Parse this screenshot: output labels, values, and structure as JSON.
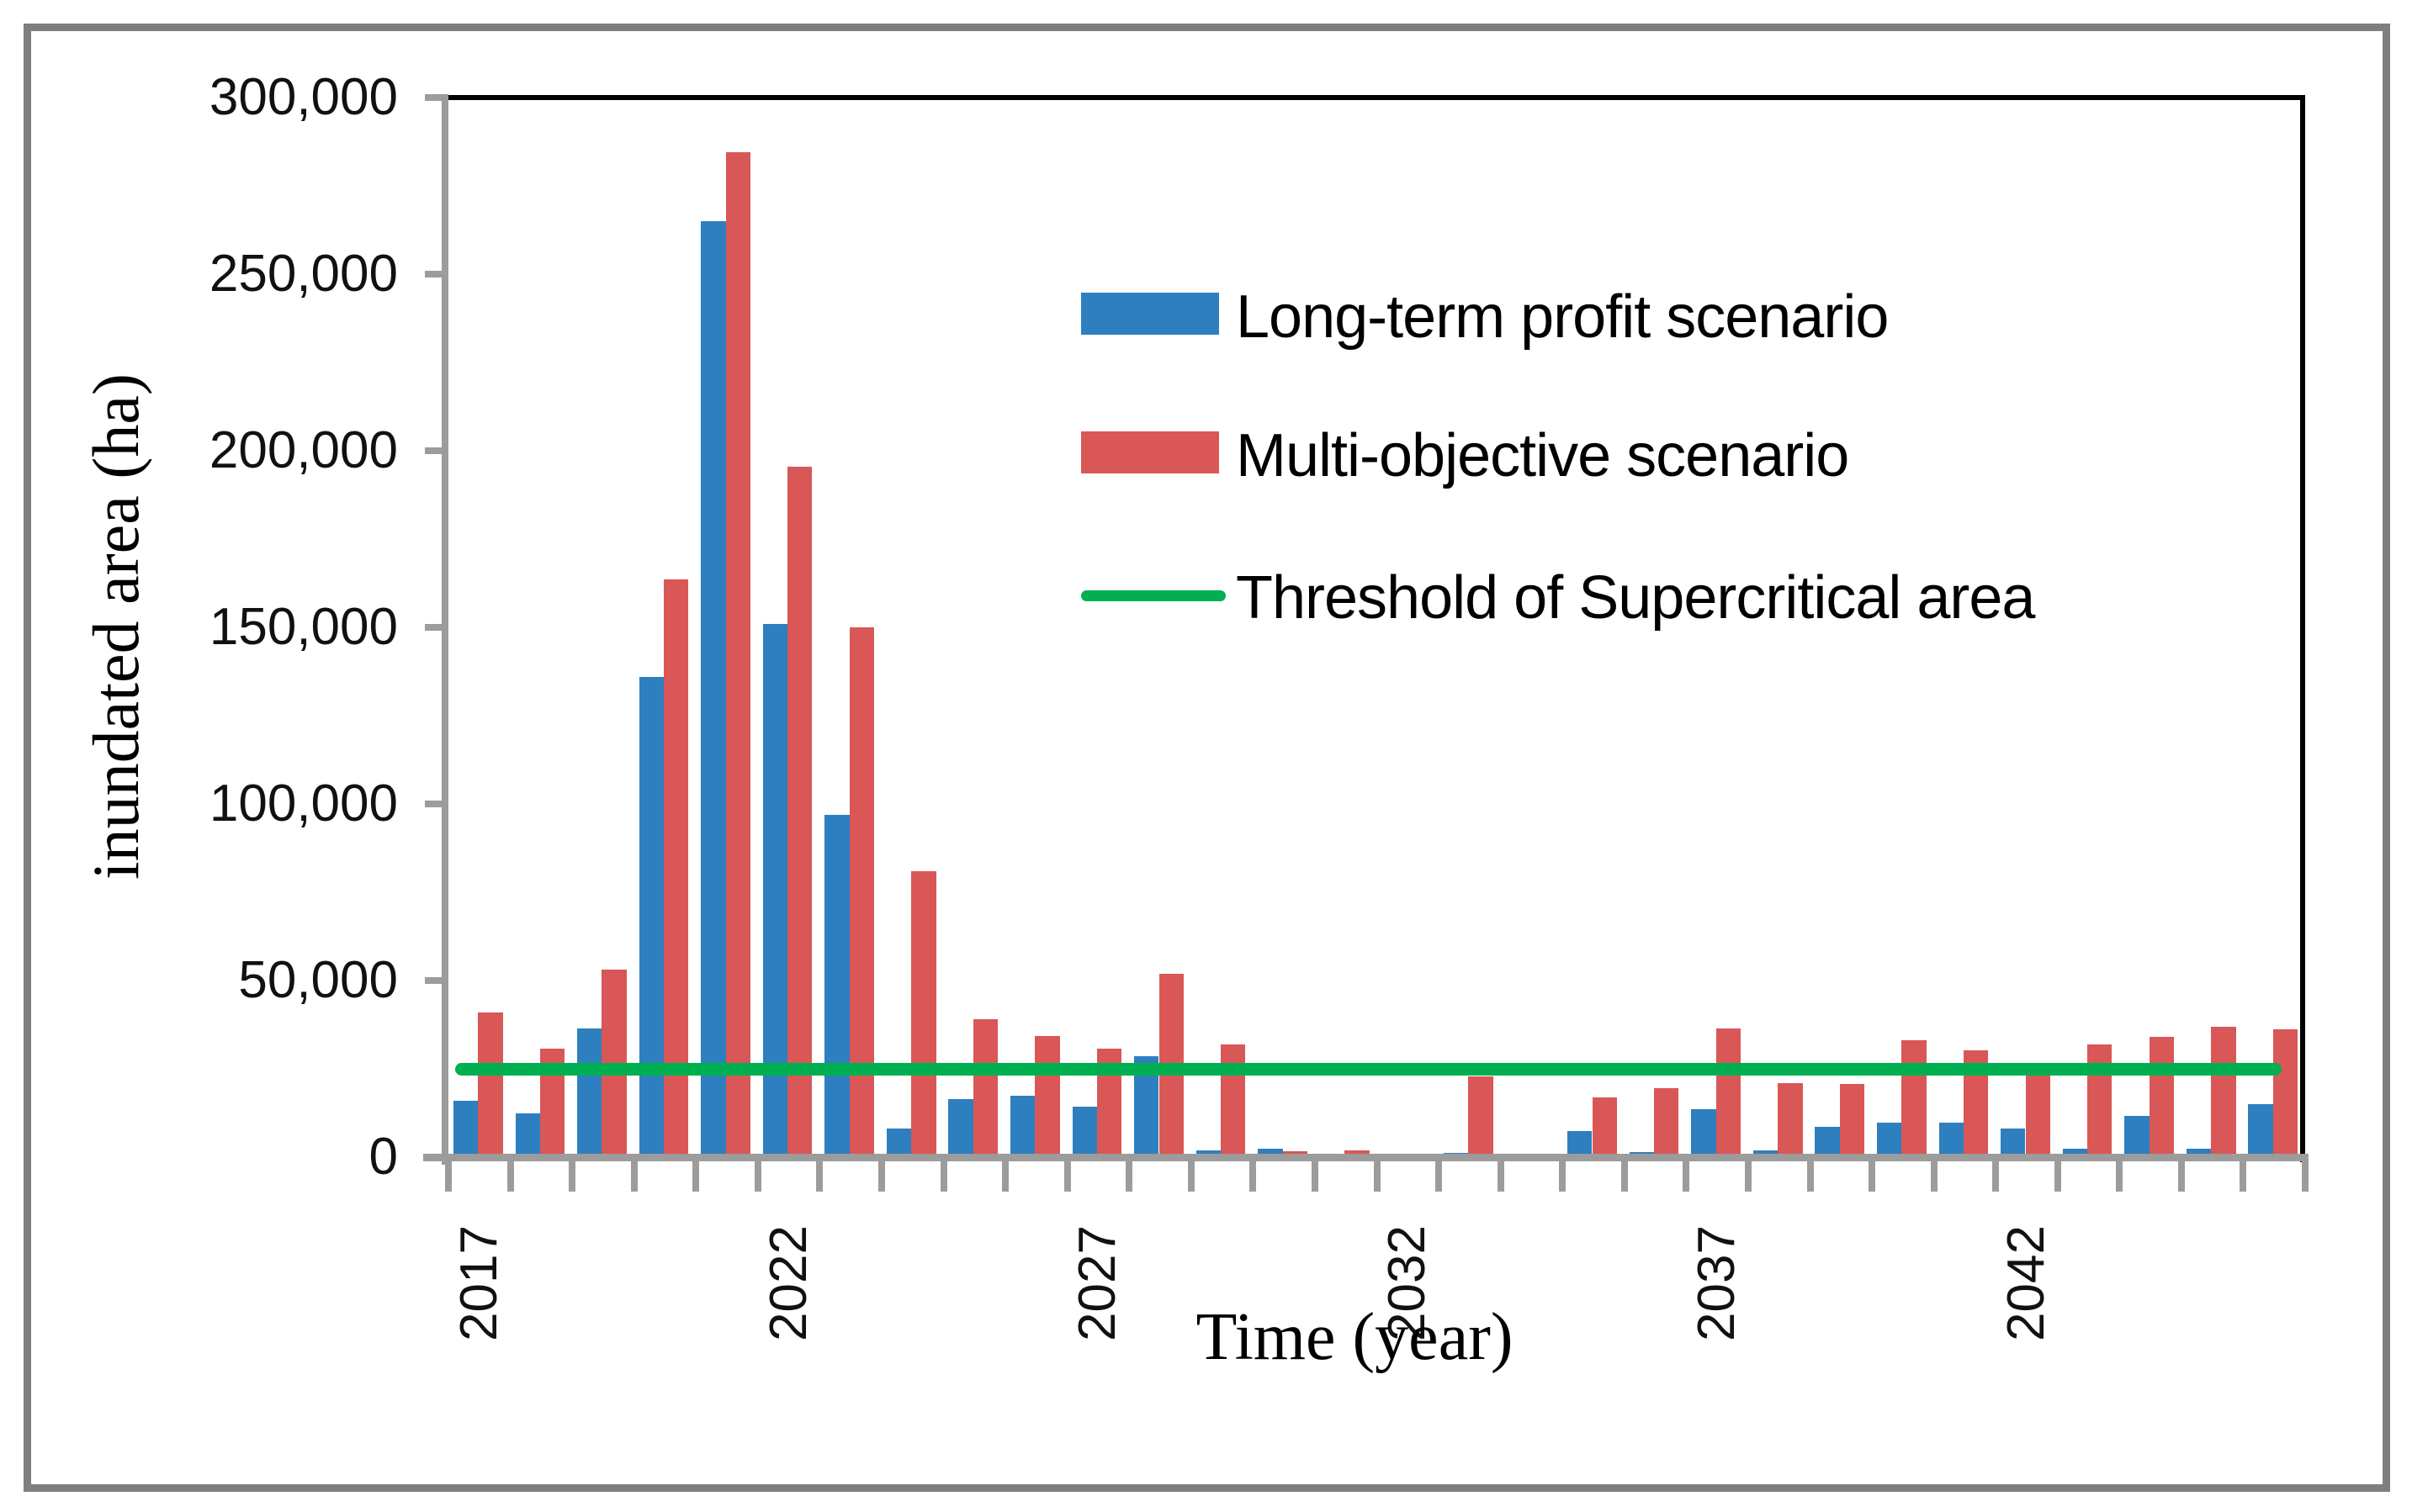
{
  "figure": {
    "border_color": "#7f7f7f",
    "background": "#ffffff"
  },
  "chart_data": {
    "type": "bar",
    "title": "",
    "xlabel": "Time (year)",
    "ylabel": "inundated area (ha)",
    "ylim": [
      0,
      300000
    ],
    "ytick_step": 50000,
    "ytick_labels": [
      "0",
      "50,000",
      "100,000",
      "150,000",
      "200,000",
      "250,000",
      "300,000"
    ],
    "grid": false,
    "legend_position": "upper-right-inside",
    "x_years": [
      2017,
      2018,
      2019,
      2020,
      2021,
      2022,
      2023,
      2024,
      2025,
      2026,
      2027,
      2028,
      2029,
      2030,
      2031,
      2032,
      2033,
      2034,
      2035,
      2036,
      2037,
      2038,
      2039,
      2040,
      2041,
      2042,
      2043,
      2044,
      2045,
      2046
    ],
    "x_tick_labels": [
      "2017",
      "2022",
      "2027",
      "2032",
      "2037",
      "2042"
    ],
    "x_label_interval": 5,
    "series": [
      {
        "name": "Long-term profit scenario",
        "color": "#2e7fbf",
        "values": [
          16000,
          12500,
          36500,
          136000,
          265000,
          151000,
          97000,
          8000,
          16500,
          17500,
          14300,
          28500,
          1900,
          2300,
          600,
          0,
          1100,
          0,
          7500,
          1400,
          13700,
          2000,
          8700,
          9800,
          9800,
          8000,
          2400,
          11600,
          2400,
          15000
        ]
      },
      {
        "name": "Multi-objective scenario",
        "color": "#d95757",
        "values": [
          41000,
          30700,
          53200,
          163500,
          284500,
          195500,
          150000,
          81000,
          39000,
          34200,
          30800,
          52000,
          32000,
          1600,
          1900,
          0,
          22900,
          900,
          17000,
          19500,
          36500,
          21000,
          20700,
          33200,
          30300,
          23500,
          32000,
          34100,
          36800,
          36200
        ]
      }
    ],
    "threshold": {
      "label": "Threshold of Supercritical area",
      "value": 25000,
      "color": "#00b050"
    },
    "axis_color": "#9c9c9c",
    "plot_border_color": "#000000"
  }
}
